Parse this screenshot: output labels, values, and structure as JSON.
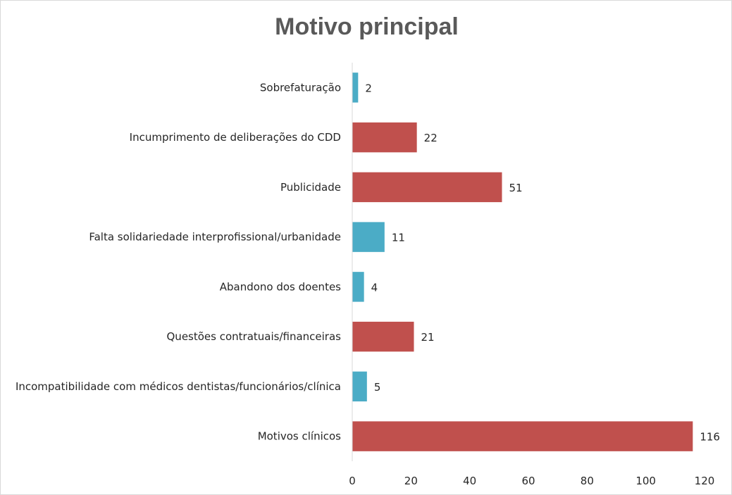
{
  "chart_data": {
    "type": "bar",
    "orientation": "horizontal",
    "title": "Motivo principal",
    "categories": [
      "Sobrefaturação",
      "Incumprimento de deliberações do CDD",
      "Publicidade",
      "Falta solidariedade interprofissional/urbanidade",
      "Abandono dos doentes",
      "Questões contratuais/financeiras",
      "Incompatibilidade com médicos dentistas/funcionários/clínica",
      "Motivos clínicos"
    ],
    "values": [
      2,
      22,
      51,
      11,
      4,
      21,
      5,
      116
    ],
    "bar_colors": [
      "#4bacc6",
      "#c0504d",
      "#c0504d",
      "#4bacc6",
      "#4bacc6",
      "#c0504d",
      "#4bacc6",
      "#c0504d"
    ],
    "xlim": [
      0,
      120
    ],
    "xticks": [
      0,
      20,
      40,
      60,
      80,
      100,
      120
    ],
    "axis_color": "#d9d9d9",
    "grid": false,
    "legend": "none",
    "data_labels": true
  }
}
